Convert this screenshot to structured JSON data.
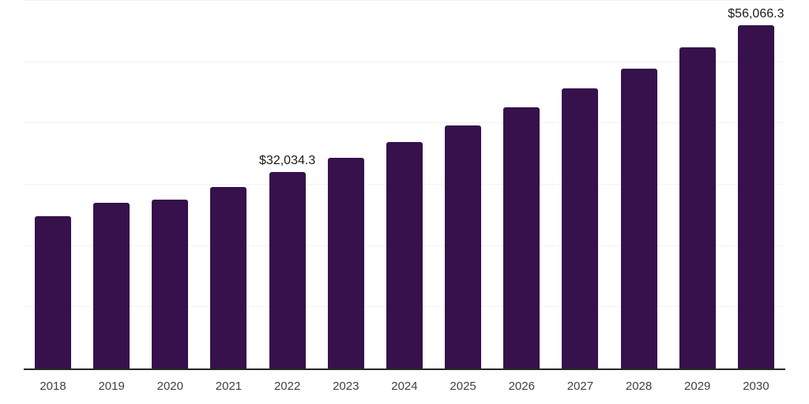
{
  "chart_data": {
    "type": "bar",
    "title": "",
    "xlabel": "",
    "ylabel": "",
    "legend": "none",
    "grid": "horizontal light gridlines, no y-axis tick labels",
    "categories": [
      "2018",
      "2019",
      "2020",
      "2021",
      "2022",
      "2023",
      "2024",
      "2025",
      "2026",
      "2027",
      "2028",
      "2029",
      "2030"
    ],
    "values": [
      24900,
      27000,
      27600,
      29600,
      32034.3,
      34400,
      36900,
      39600,
      42600,
      45700,
      48900,
      52400,
      56066.3
    ],
    "data_labels": {
      "2022": "$32,034.3",
      "2030": "$56,066.3"
    },
    "ylim": [
      0,
      60000
    ],
    "gridline_step": 10000,
    "colors": {
      "bar": "#36114b",
      "gridline": "#f2f2f2",
      "axis_line": "#262626",
      "x_label": "#404040",
      "data_label": "#1a1a1a",
      "background": "#ffffff"
    }
  }
}
